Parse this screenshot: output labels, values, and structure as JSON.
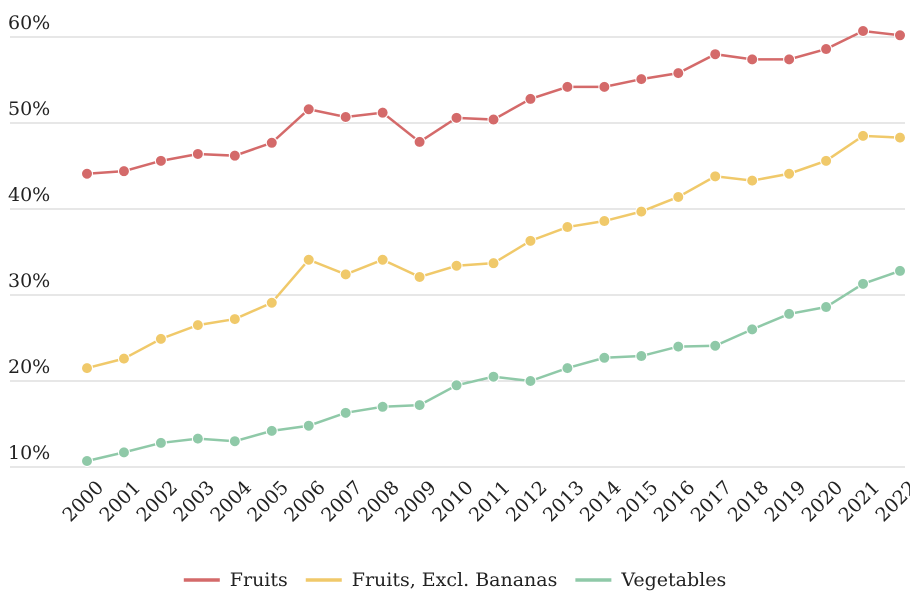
{
  "chart_data": {
    "type": "line",
    "x": [
      "2000",
      "2001",
      "2002",
      "2003",
      "2004",
      "2005",
      "2006",
      "2007",
      "2008",
      "2009",
      "2010",
      "2011",
      "2012",
      "2013",
      "2014",
      "2015",
      "2016",
      "2017",
      "2018",
      "2019",
      "2020",
      "2021",
      "2022"
    ],
    "series": [
      {
        "name": "Fruits",
        "color": "#d46a6a",
        "values": [
          44.1,
          44.4,
          45.6,
          46.4,
          46.2,
          47.7,
          51.6,
          50.7,
          51.2,
          47.8,
          50.6,
          50.4,
          52.8,
          54.2,
          54.2,
          55.1,
          55.8,
          58.0,
          57.4,
          57.4,
          58.6,
          60.7,
          60.2
        ]
      },
      {
        "name": "Fruits, Excl. Bananas",
        "color": "#f0c96a",
        "values": [
          21.5,
          22.6,
          24.9,
          26.5,
          27.2,
          29.1,
          34.1,
          32.4,
          34.1,
          32.1,
          33.4,
          33.7,
          36.3,
          37.9,
          38.6,
          39.7,
          41.4,
          43.8,
          43.3,
          44.1,
          45.6,
          48.5,
          48.3
        ]
      },
      {
        "name": "Vegetables",
        "color": "#8fc9a8",
        "values": [
          10.7,
          11.7,
          12.8,
          13.3,
          13.0,
          14.2,
          14.8,
          16.3,
          17.0,
          17.2,
          19.5,
          20.5,
          20.0,
          21.5,
          22.7,
          22.9,
          24.0,
          24.1,
          26.0,
          27.8,
          28.6,
          31.3,
          32.8
        ]
      }
    ],
    "ylim": [
      10,
      62.5
    ],
    "yticks": [
      {
        "value": 10,
        "label": "10%"
      },
      {
        "value": 20,
        "label": "20%"
      },
      {
        "value": 30,
        "label": "30%"
      },
      {
        "value": 40,
        "label": "40%"
      },
      {
        "value": 50,
        "label": "50%"
      },
      {
        "value": 60,
        "label": "60%"
      }
    ],
    "grid": true,
    "legend": "bottom"
  }
}
